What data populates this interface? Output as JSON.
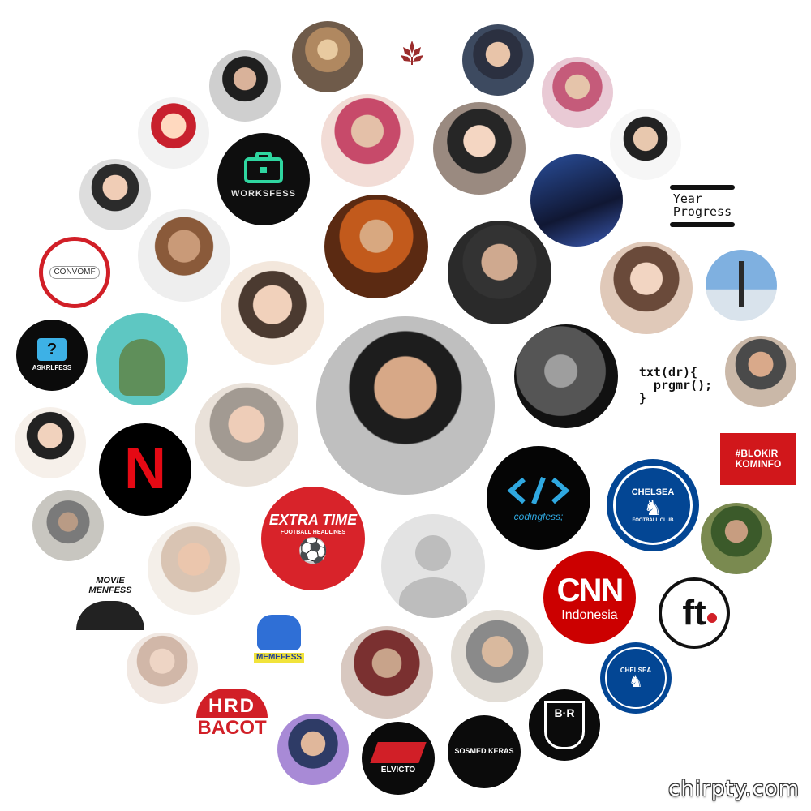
{
  "accounts": {
    "worksfess": "WORKSFESS",
    "year_progress": "Year\nProgress",
    "coder_text": "txt(dr){\n  prgmr();\n}",
    "askrlfess": "ASKRLFESS",
    "netflix": "N",
    "blokir_kominfo": "#BLOKIR\nKOMINFO",
    "codingfess": "codingfess;",
    "extra_time": "EXTRA TIME",
    "extra_time_sub": "FOOTBALL HEADLINES",
    "chelsea": "CHELSEA",
    "chelsea_sub": "FOOTBALL CLUB",
    "cnn": "CNN",
    "cnn_sub": "Indonesia",
    "ft": "ft",
    "movie_menfess": "MOVIE\nMENFESS",
    "memefess": "MEMEFESS",
    "hrd": "HRD",
    "hrd_sub": "BACOT",
    "elvicto": "ELVICTO",
    "sosmed_keras": "SOSMED KERAS",
    "br": "B·R",
    "convomf": "CONVOMF"
  },
  "brand_colors": {
    "netflix_red": "#e50914",
    "cnn_red": "#cc0000",
    "chelsea_blue": "#034694",
    "coding_blue": "#2fa8e0",
    "worksfess_teal": "#2fd6a0",
    "extra_time_red": "#d8232a"
  },
  "watermark": "chirpty.com"
}
